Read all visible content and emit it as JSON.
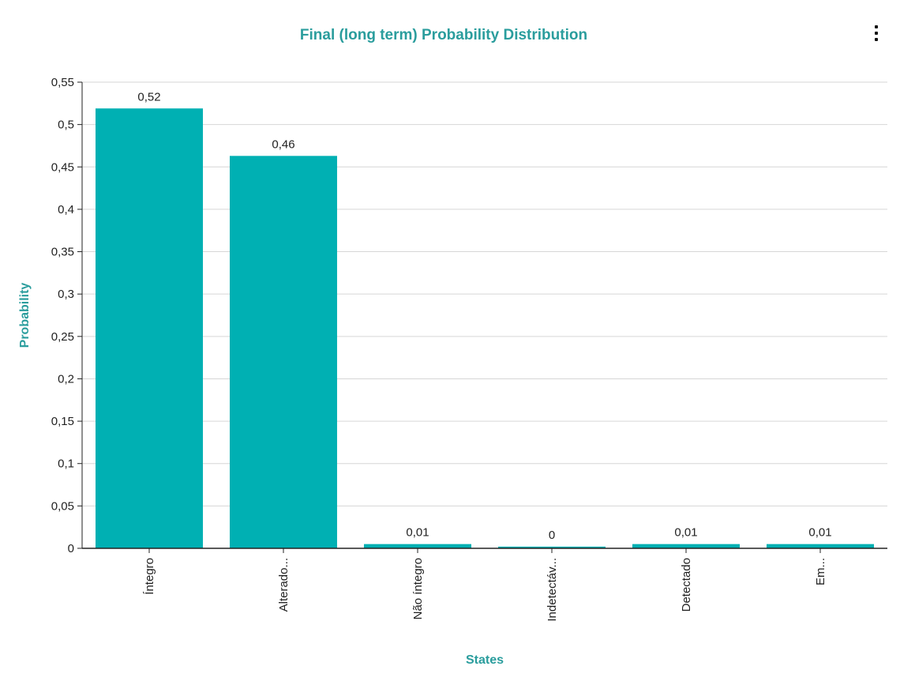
{
  "chart_data": {
    "type": "bar",
    "title": "Final (long term) Probability Distribution",
    "xlabel": "States",
    "ylabel": "Probability",
    "categories": [
      "Íntegro",
      "Alterado...",
      "Não íntegro",
      "Indetectáv...",
      "Detectado",
      "Em..."
    ],
    "values": [
      0.519,
      0.463,
      0.005,
      0.002,
      0.005,
      0.005
    ],
    "data_labels": [
      "0,52",
      "0,46",
      "0,01",
      "0",
      "0,01",
      "0,01"
    ],
    "ylim": [
      0,
      0.55
    ],
    "yticks": [
      0,
      0.05,
      0.1,
      0.15,
      0.2,
      0.25,
      0.3,
      0.35,
      0.4,
      0.45,
      0.5,
      0.55
    ],
    "ytick_labels": [
      "0",
      "0,05",
      "0,1",
      "0,15",
      "0,2",
      "0,25",
      "0,3",
      "0,35",
      "0,4",
      "0,45",
      "0,5",
      "0,55"
    ],
    "grid": true,
    "bar_color": "#00b0b3",
    "title_color": "#2a9d9d"
  },
  "toolbar": {
    "menu_icon": "more-vertical-icon"
  }
}
